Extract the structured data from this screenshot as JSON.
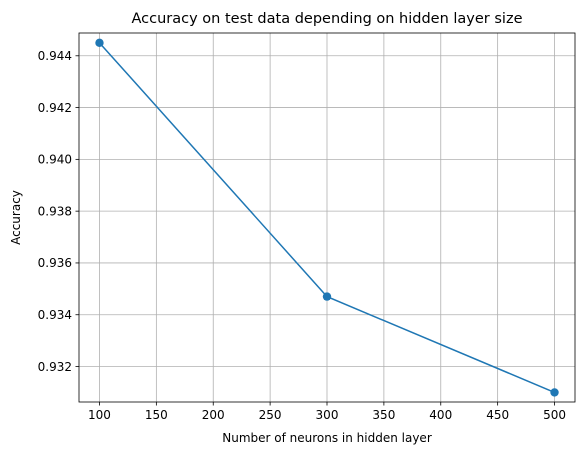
{
  "chart_data": {
    "type": "line",
    "title": "Accuracy on test data depending on hidden layer size",
    "xlabel": "Number of neurons in hidden layer",
    "ylabel": "Accuracy",
    "xlim": [
      82,
      518
    ],
    "ylim": [
      0.93063,
      0.94488
    ],
    "xticks": [
      100,
      150,
      200,
      250,
      300,
      350,
      400,
      450,
      500
    ],
    "xtick_labels": [
      "100",
      "150",
      "200",
      "250",
      "300",
      "350",
      "400",
      "450",
      "500"
    ],
    "yticks": [
      0.932,
      0.934,
      0.936,
      0.938,
      0.94,
      0.942,
      0.944
    ],
    "ytick_labels": [
      "0.932",
      "0.934",
      "0.936",
      "0.938",
      "0.940",
      "0.942",
      "0.944"
    ],
    "grid": true,
    "series": [
      {
        "color": "#1f77b4",
        "marker": "circle",
        "x": [
          100,
          300,
          500
        ],
        "y": [
          0.9445,
          0.9347,
          0.931
        ]
      }
    ]
  }
}
